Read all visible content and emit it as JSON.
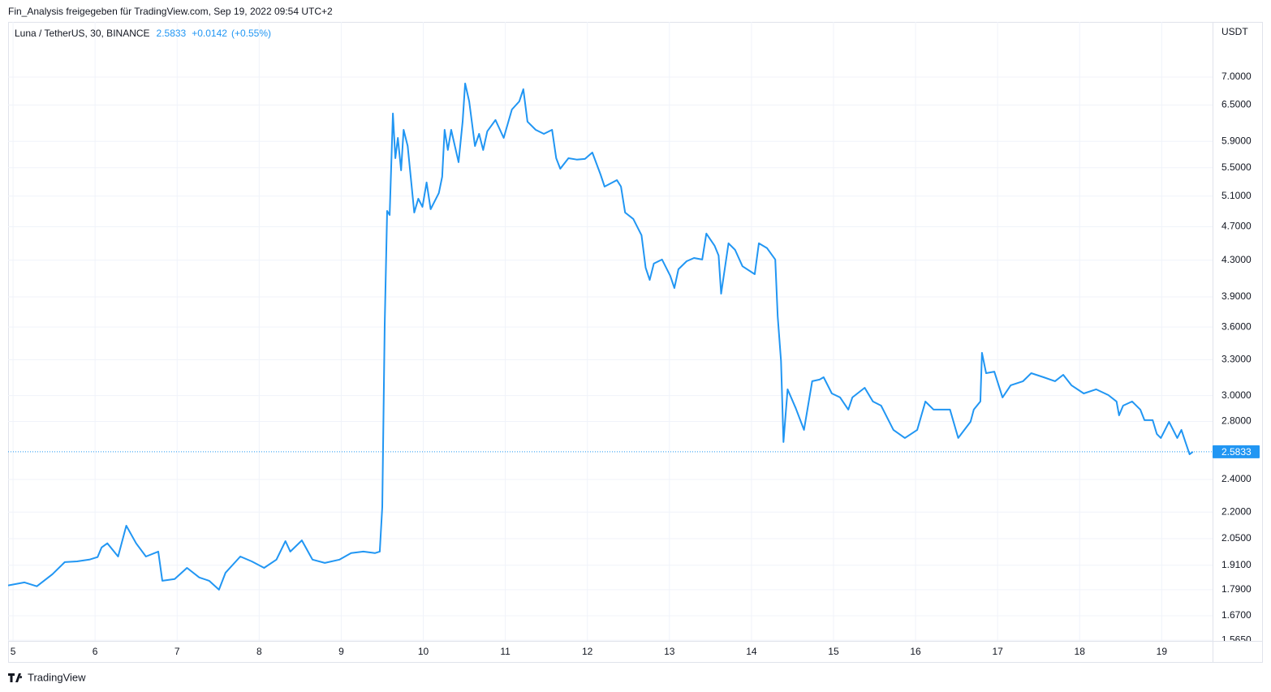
{
  "header": {
    "attribution": "Fin_Analysis freigegeben für TradingView.com, Sep 19, 2022 09:54 UTC+2",
    "branding": "TradingView"
  },
  "chart_data": {
    "type": "line",
    "title": "Luna / TetherUS, 30, BINANCE",
    "last_price": 2.5833,
    "change": "+0.0142",
    "change_percent": "(+0.55%)",
    "y_axis_label": "USDT",
    "color": "#2196f3",
    "log_scale": true,
    "grid": true,
    "xlim": [
      4.94,
      19.62
    ],
    "xticks": [
      5,
      6,
      7,
      8,
      9,
      10,
      11,
      12,
      13,
      14,
      15,
      16,
      17,
      18,
      19
    ],
    "ylim": [
      1.562,
      8.106
    ],
    "yticks": [
      {
        "value": 7,
        "label": "7.0000"
      },
      {
        "value": 6.5,
        "label": "6.5000"
      },
      {
        "value": 5.9,
        "label": "5.9000"
      },
      {
        "value": 5.5,
        "label": "5.5000"
      },
      {
        "value": 5.1,
        "label": "5.1000"
      },
      {
        "value": 4.7,
        "label": "4.7000"
      },
      {
        "value": 4.3,
        "label": "4.3000"
      },
      {
        "value": 3.9,
        "label": "3.9000"
      },
      {
        "value": 3.6,
        "label": "3.6000"
      },
      {
        "value": 3.3,
        "label": "3.3000"
      },
      {
        "value": 3,
        "label": "3.0000"
      },
      {
        "value": 2.8,
        "label": "2.8000"
      },
      {
        "value": 2.4,
        "label": "2.4000"
      },
      {
        "value": 2.2,
        "label": "2.2000"
      },
      {
        "value": 2.05,
        "label": "2.0500"
      },
      {
        "value": 1.91,
        "label": "1.9100"
      },
      {
        "value": 1.79,
        "label": "1.7900"
      },
      {
        "value": 1.67,
        "label": "1.6700"
      },
      {
        "value": 1.565,
        "label": "1.5650"
      }
    ],
    "x": [
      4.94,
      5.14,
      5.29,
      5.48,
      5.63,
      5.78,
      5.93,
      6.03,
      6.08,
      6.15,
      6.28,
      6.38,
      6.5,
      6.62,
      6.77,
      6.82,
      6.97,
      7.12,
      7.27,
      7.39,
      7.51,
      7.59,
      7.77,
      7.91,
      8.06,
      8.21,
      8.32,
      8.38,
      8.52,
      8.65,
      8.8,
      8.98,
      9.12,
      9.27,
      9.41,
      9.47,
      9.5,
      9.53,
      9.56,
      9.59,
      9.63,
      9.66,
      9.69,
      9.73,
      9.76,
      9.81,
      9.89,
      9.94,
      9.99,
      10.04,
      10.09,
      10.19,
      10.23,
      10.26,
      10.3,
      10.34,
      10.43,
      10.48,
      10.51,
      10.56,
      10.63,
      10.68,
      10.73,
      10.78,
      10.88,
      10.98,
      11.08,
      11.17,
      11.22,
      11.27,
      11.37,
      11.47,
      11.57,
      11.62,
      11.67,
      11.77,
      11.87,
      11.97,
      12.06,
      12.16,
      12.21,
      12.36,
      12.41,
      12.46,
      12.56,
      12.66,
      12.71,
      12.76,
      12.81,
      12.91,
      13.01,
      13.06,
      13.11,
      13.21,
      13.3,
      13.4,
      13.45,
      13.55,
      13.6,
      13.63,
      13.72,
      13.8,
      13.89,
      14.04,
      14.09,
      14.19,
      14.29,
      14.32,
      14.36,
      14.39,
      14.44,
      14.54,
      14.64,
      14.74,
      14.83,
      14.88,
      14.98,
      15.08,
      15.18,
      15.23,
      15.38,
      15.48,
      15.58,
      15.68,
      15.73,
      15.87,
      16.02,
      16.12,
      16.22,
      16.32,
      16.42,
      16.52,
      16.67,
      16.71,
      16.79,
      16.81,
      16.86,
      16.96,
      17.06,
      17.16,
      17.31,
      17.41,
      17.56,
      17.7,
      17.8,
      17.9,
      18.05,
      18.2,
      18.35,
      18.45,
      18.48,
      18.53,
      18.64,
      18.74,
      18.79,
      18.89,
      18.94,
      18.99,
      19.09,
      19.19,
      19.24,
      19.29,
      19.34,
      19.38
    ],
    "values": [
      1.81,
      1.825,
      1.806,
      1.865,
      1.926,
      1.93,
      1.939,
      1.952,
      2.003,
      2.025,
      1.955,
      2.122,
      2.025,
      1.955,
      1.981,
      1.833,
      1.841,
      1.897,
      1.849,
      1.833,
      1.79,
      1.873,
      1.955,
      1.93,
      1.897,
      1.939,
      2.037,
      1.981,
      2.041,
      1.939,
      1.922,
      1.939,
      1.973,
      1.981,
      1.973,
      1.981,
      2.23,
      3.625,
      4.903,
      4.85,
      6.353,
      5.641,
      5.954,
      5.461,
      6.084,
      5.827,
      4.882,
      5.065,
      4.956,
      5.288,
      4.925,
      5.142,
      5.369,
      6.084,
      5.765,
      6.084,
      5.581,
      6.217,
      6.881,
      6.561,
      5.827,
      6.018,
      5.765,
      6.06,
      6.244,
      5.954,
      6.421,
      6.561,
      6.777,
      6.217,
      6.084,
      6.018,
      6.084,
      5.641,
      5.485,
      5.641,
      5.62,
      5.63,
      5.727,
      5.403,
      5.231,
      5.322,
      5.231,
      4.882,
      4.799,
      4.596,
      4.215,
      4.081,
      4.262,
      4.308,
      4.126,
      3.994,
      4.198,
      4.289,
      4.326,
      4.308,
      4.616,
      4.47,
      4.354,
      3.934,
      4.498,
      4.42,
      4.232,
      4.143,
      4.498,
      4.44,
      4.308,
      3.704,
      3.289,
      2.651,
      3.05,
      2.9,
      2.738,
      3.117,
      3.13,
      3.15,
      3.017,
      2.985,
      2.89,
      2.985,
      3.063,
      2.953,
      2.921,
      2.798,
      2.738,
      2.68,
      2.738,
      2.953,
      2.89,
      2.89,
      2.89,
      2.68,
      2.798,
      2.89,
      2.953,
      3.361,
      3.184,
      3.197,
      2.985,
      3.083,
      3.117,
      3.184,
      3.15,
      3.117,
      3.17,
      3.083,
      3.017,
      3.05,
      3.004,
      2.953,
      2.846,
      2.921,
      2.953,
      2.89,
      2.81,
      2.81,
      2.709,
      2.68,
      2.798,
      2.68,
      2.738,
      2.651,
      2.566,
      2.5833
    ]
  }
}
